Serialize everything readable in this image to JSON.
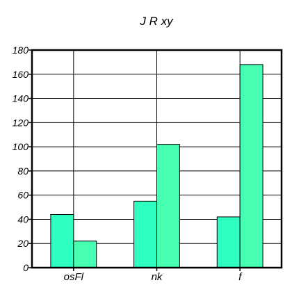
{
  "chart_data": {
    "type": "bar",
    "title": "J  R xy",
    "xlabel": "",
    "ylabel": "",
    "categories": [
      "osFl",
      "nk",
      "f"
    ],
    "series": [
      {
        "values": [
          44,
          55,
          42
        ],
        "color": "#2effc0"
      },
      {
        "values": [
          22,
          102,
          168
        ],
        "color": "#46ffb0"
      }
    ],
    "ylim": [
      0,
      180
    ],
    "yticks": [
      0,
      20,
      40,
      60,
      80,
      100,
      120,
      140,
      160,
      180
    ],
    "grid": true,
    "legend": "none"
  }
}
